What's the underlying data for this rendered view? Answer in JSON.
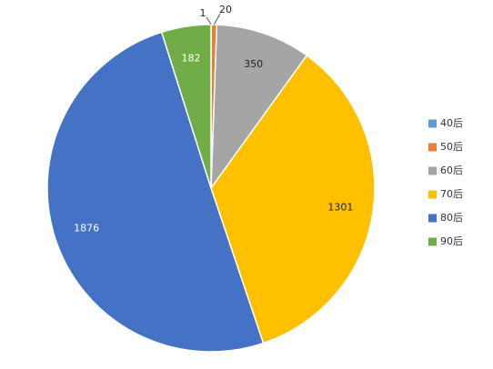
{
  "chart_data": {
    "type": "pie",
    "title": "",
    "categories": [
      "40后",
      "50后",
      "60后",
      "70后",
      "80后",
      "90后"
    ],
    "values": [
      1,
      20,
      350,
      1301,
      1876,
      182
    ],
    "colors": [
      "#5B9BD5",
      "#ED7D31",
      "#A5A5A5",
      "#FFC000",
      "#4472C4",
      "#70AD47"
    ],
    "legend_position": "right",
    "data_labels": [
      "1",
      "20",
      "350",
      "1301",
      "1876",
      "182"
    ],
    "start_angle_deg": 0,
    "direction": "clockwise"
  }
}
